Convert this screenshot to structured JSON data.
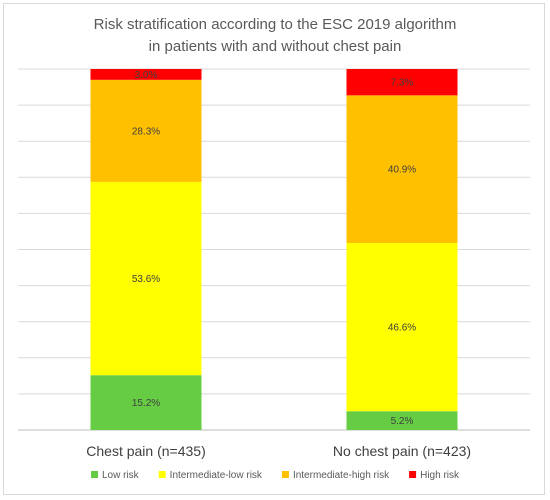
{
  "chart_data": {
    "type": "bar",
    "stacked": true,
    "normalized": true,
    "title": "Risk stratification according to the ESC 2019 algorithm",
    "subtitle": "in patients with and without chest pain",
    "categories": [
      "Chest pain (n=435)",
      "No chest pain (n=423)"
    ],
    "ylim": [
      0,
      100
    ],
    "grid": true,
    "legend_position": "bottom",
    "series": [
      {
        "name": "Low risk",
        "color": "#66cc44",
        "values": [
          15.2,
          5.2
        ],
        "labels": [
          "15.2%",
          "5.2%"
        ]
      },
      {
        "name": "Intermediate-low risk",
        "color": "#ffff00",
        "values": [
          53.6,
          46.6
        ],
        "labels": [
          "53.6%",
          "46.6%"
        ]
      },
      {
        "name": "Intermediate-high risk",
        "color": "#ffc000",
        "values": [
          28.3,
          40.9
        ],
        "labels": [
          "28.3%",
          "40.9%"
        ]
      },
      {
        "name": "High risk",
        "color": "#ff0000",
        "values": [
          3.0,
          7.3
        ],
        "labels": [
          "3.0%",
          "7.3%"
        ]
      }
    ]
  }
}
